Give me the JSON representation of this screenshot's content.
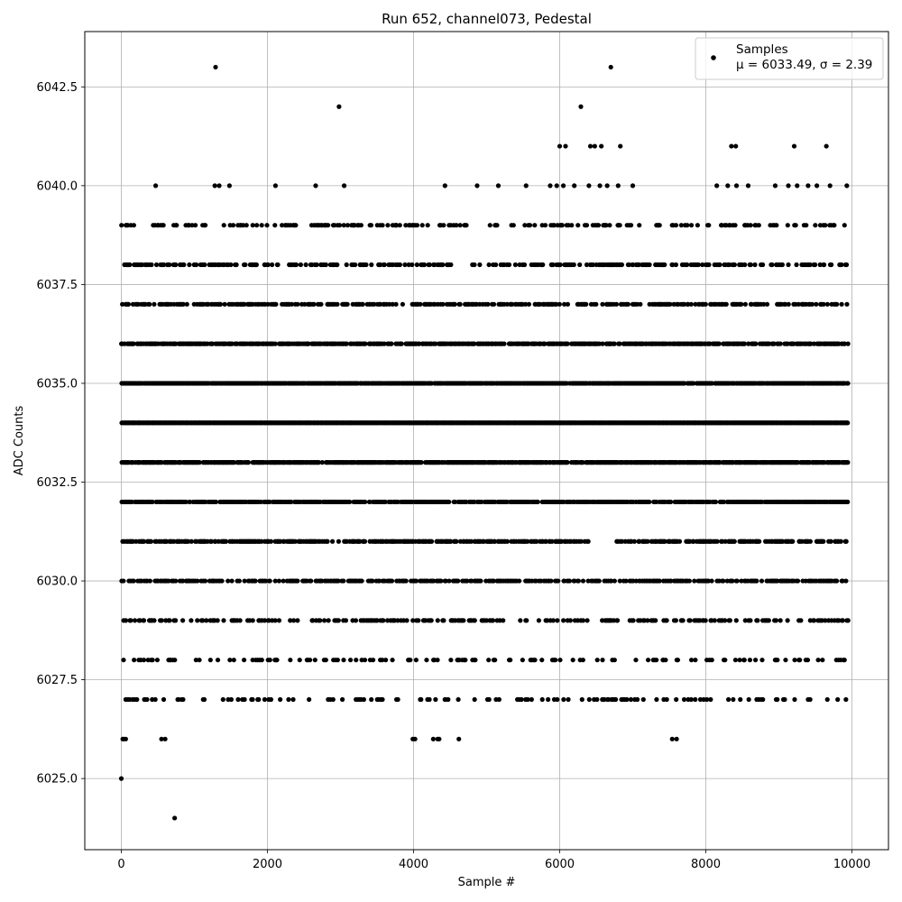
{
  "chart_data": {
    "type": "scatter",
    "title": "Run 652, channel073, Pedestal",
    "xlabel": "Sample #",
    "ylabel": "ADC Counts",
    "xlim": [
      -500,
      10500
    ],
    "ylim": [
      6023.2,
      6043.9
    ],
    "xticks": [
      0,
      2000,
      4000,
      6000,
      8000,
      10000
    ],
    "xtick_labels": [
      "0",
      "2000",
      "4000",
      "6000",
      "8000",
      "10000"
    ],
    "yticks": [
      6025.0,
      6027.5,
      6030.0,
      6032.5,
      6035.0,
      6037.5,
      6040.0,
      6042.5
    ],
    "ytick_labels": [
      "6025.0",
      "6027.5",
      "6030.0",
      "6032.5",
      "6035.0",
      "6037.5",
      "6040.0",
      "6042.5"
    ],
    "grid": true,
    "legend_position": "top-right",
    "marker_color": "#000000",
    "series": [
      {
        "name": "Samples",
        "stats_label": "μ = 6033.49, σ = 2.39",
        "n_samples": 10000,
        "levels": [
          {
            "y": 6034,
            "ranges": [
              [
                0,
                9950
              ]
            ]
          },
          {
            "y": 6035,
            "ranges": [
              [
                0,
                9950
              ]
            ]
          },
          {
            "y": 6033,
            "ranges": [
              [
                0,
                9950
              ]
            ]
          },
          {
            "y": 6032,
            "ranges": [
              [
                0,
                9950
              ]
            ]
          },
          {
            "y": 6036,
            "ranges": [
              [
                0,
                9950
              ]
            ]
          },
          {
            "y": 6031,
            "ranges": [
              [
                0,
                6400
              ],
              [
                6780,
                9950
              ]
            ]
          },
          {
            "y": 6030,
            "ranges": [
              [
                0,
                9950
              ]
            ]
          },
          {
            "y": 6037,
            "ranges": [
              [
                0,
                9950
              ]
            ]
          },
          {
            "y": 6038,
            "ranges": [
              [
                0,
                9950
              ]
            ]
          },
          {
            "y": 6029,
            "ranges": [
              [
                0,
                9950
              ]
            ]
          },
          {
            "y": 6039,
            "ranges": [
              [
                0,
                9950
              ]
            ]
          },
          {
            "y": 6028,
            "ranges": [
              [
                0,
                9950
              ]
            ]
          },
          {
            "y": 6027,
            "ranges": [
              [
                0,
                9950
              ]
            ]
          }
        ],
        "sparse_points": [
          [
            0,
            6025
          ],
          [
            730,
            6024
          ],
          [
            1290,
            6043
          ],
          [
            6700,
            6043
          ],
          [
            2980,
            6042
          ],
          [
            6290,
            6042
          ],
          [
            20,
            6026
          ],
          [
            30,
            6026
          ],
          [
            60,
            6026
          ],
          [
            550,
            6026
          ],
          [
            600,
            6026
          ],
          [
            3990,
            6026
          ],
          [
            4020,
            6026
          ],
          [
            4270,
            6026
          ],
          [
            4330,
            6026
          ],
          [
            4350,
            6026
          ],
          [
            4620,
            6026
          ],
          [
            7540,
            6026
          ],
          [
            7600,
            6026
          ],
          [
            470,
            6040
          ],
          [
            1280,
            6040
          ],
          [
            1340,
            6040
          ],
          [
            1480,
            6040
          ],
          [
            2110,
            6040
          ],
          [
            2660,
            6040
          ],
          [
            3050,
            6040
          ],
          [
            4430,
            6040
          ],
          [
            4870,
            6040
          ],
          [
            5160,
            6040
          ],
          [
            5540,
            6040
          ],
          [
            5870,
            6040
          ],
          [
            5960,
            6040
          ],
          [
            6050,
            6040
          ],
          [
            6200,
            6040
          ],
          [
            6400,
            6040
          ],
          [
            6550,
            6040
          ],
          [
            6650,
            6040
          ],
          [
            6800,
            6040
          ],
          [
            7000,
            6040
          ],
          [
            8150,
            6040
          ],
          [
            8300,
            6040
          ],
          [
            8420,
            6040
          ],
          [
            8580,
            6040
          ],
          [
            8950,
            6040
          ],
          [
            9130,
            6040
          ],
          [
            9250,
            6040
          ],
          [
            9400,
            6040
          ],
          [
            9520,
            6040
          ],
          [
            9700,
            6040
          ],
          [
            9930,
            6040
          ],
          [
            6000,
            6041
          ],
          [
            6080,
            6041
          ],
          [
            6420,
            6041
          ],
          [
            6480,
            6041
          ],
          [
            6570,
            6041
          ],
          [
            6830,
            6041
          ],
          [
            8350,
            6041
          ],
          [
            8410,
            6041
          ],
          [
            9210,
            6041
          ],
          [
            9650,
            6041
          ]
        ]
      }
    ]
  }
}
